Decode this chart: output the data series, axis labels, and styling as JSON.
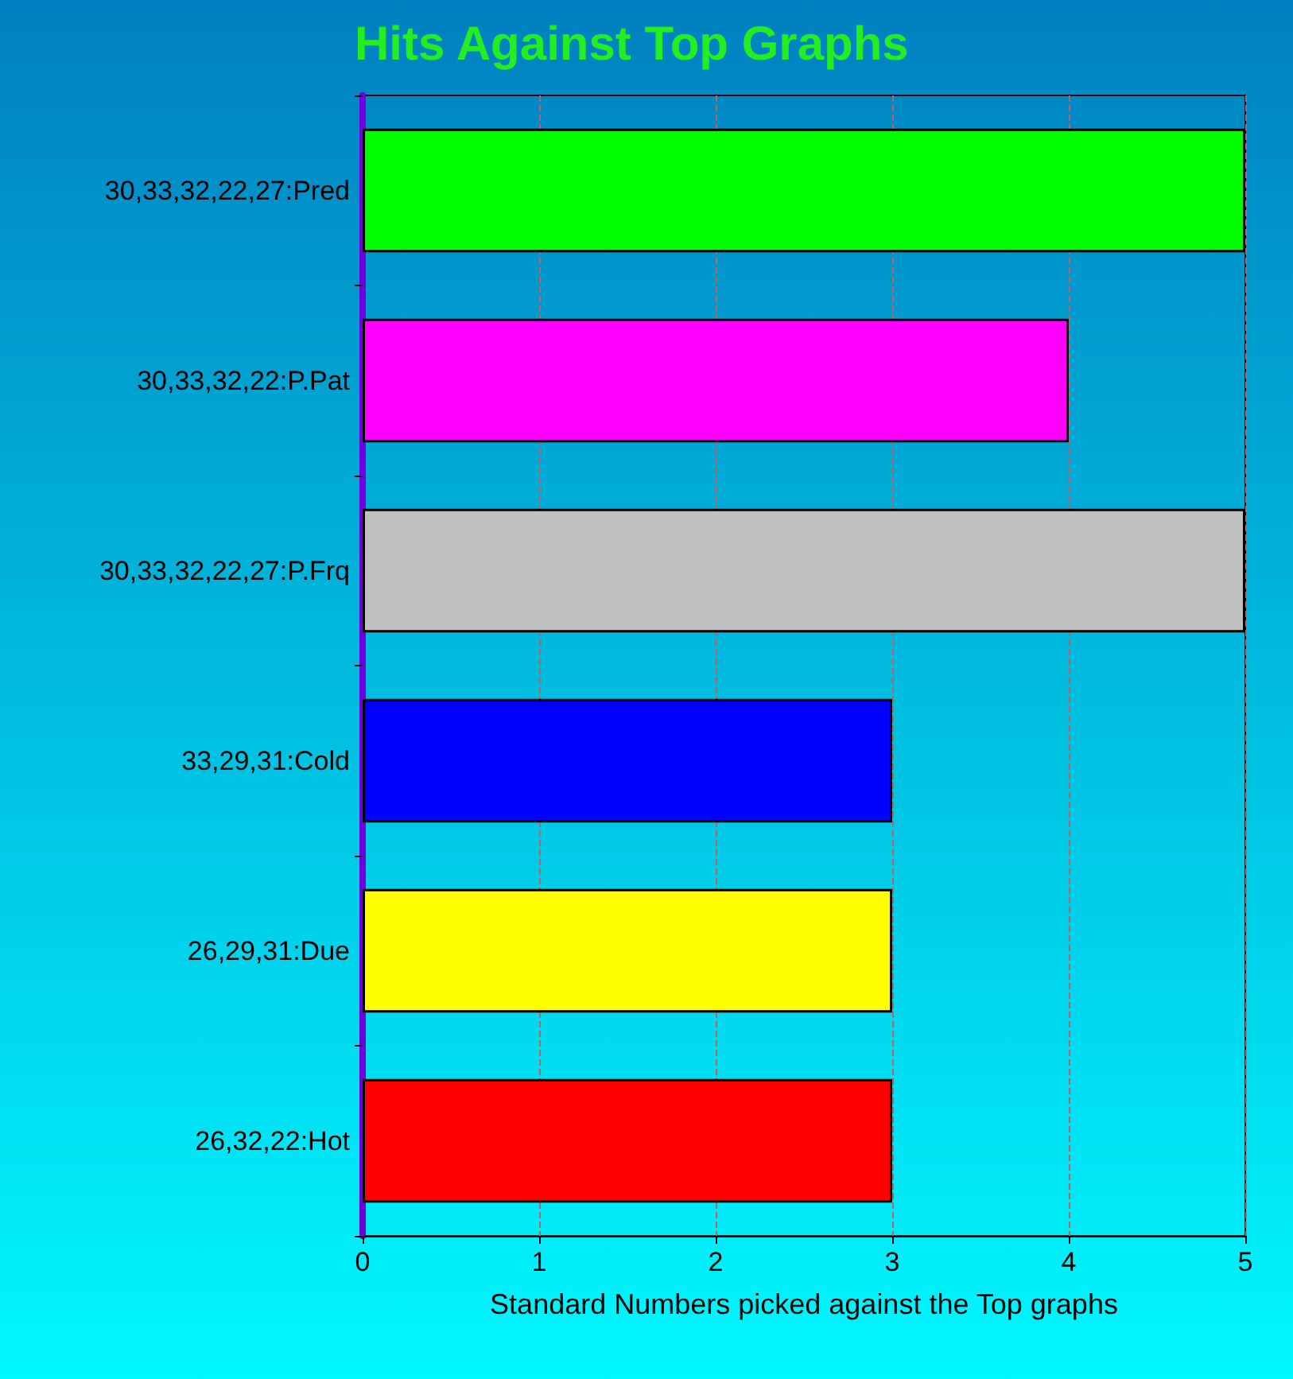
{
  "chart_data": {
    "type": "bar",
    "orientation": "horizontal",
    "title": "Hits Against Top Graphs",
    "xlabel": "Standard Numbers picked against the Top graphs",
    "categories": [
      "30,33,32,22,27:Pred",
      "30,33,32,22:P.Pat",
      "30,33,32,22,27:P.Frq",
      "33,29,31:Cold",
      "26,29,31:Due",
      "26,32,22:Hot"
    ],
    "values": [
      5,
      4,
      5,
      3,
      3,
      3
    ],
    "colors": [
      "#00ff00",
      "#ff00ff",
      "#c0c0c0",
      "#0000ff",
      "#ffff00",
      "#ff0000"
    ],
    "xlim": [
      0,
      5
    ],
    "xticks": [
      0,
      1,
      2,
      3,
      4,
      5
    ],
    "grid": "x"
  }
}
